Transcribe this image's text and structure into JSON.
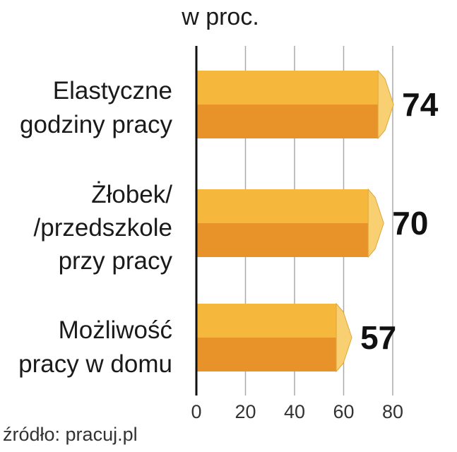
{
  "chart_data": {
    "type": "bar",
    "orientation": "horizontal",
    "unit_label": "w proc.",
    "categories": [
      [
        "Elastyczne",
        "godziny pracy"
      ],
      [
        "Żłobek/",
        "/przedszkole",
        "przy pracy"
      ],
      [
        "Możliwość",
        "pracy w domu"
      ]
    ],
    "values": [
      74,
      70,
      57
    ],
    "value_labels": [
      "74",
      "70",
      "57"
    ],
    "xlim": [
      0,
      80
    ],
    "x_ticks": [
      "0",
      "20",
      "40",
      "60",
      "80"
    ],
    "grid": true,
    "colors": {
      "bar_top": "#f5b83d",
      "bar_bottom": "#e8932a",
      "bar_end": "#f8d072",
      "axis": "#111111",
      "grid": "#aaaaaa"
    }
  },
  "source": "źródło: pracuj.pl"
}
